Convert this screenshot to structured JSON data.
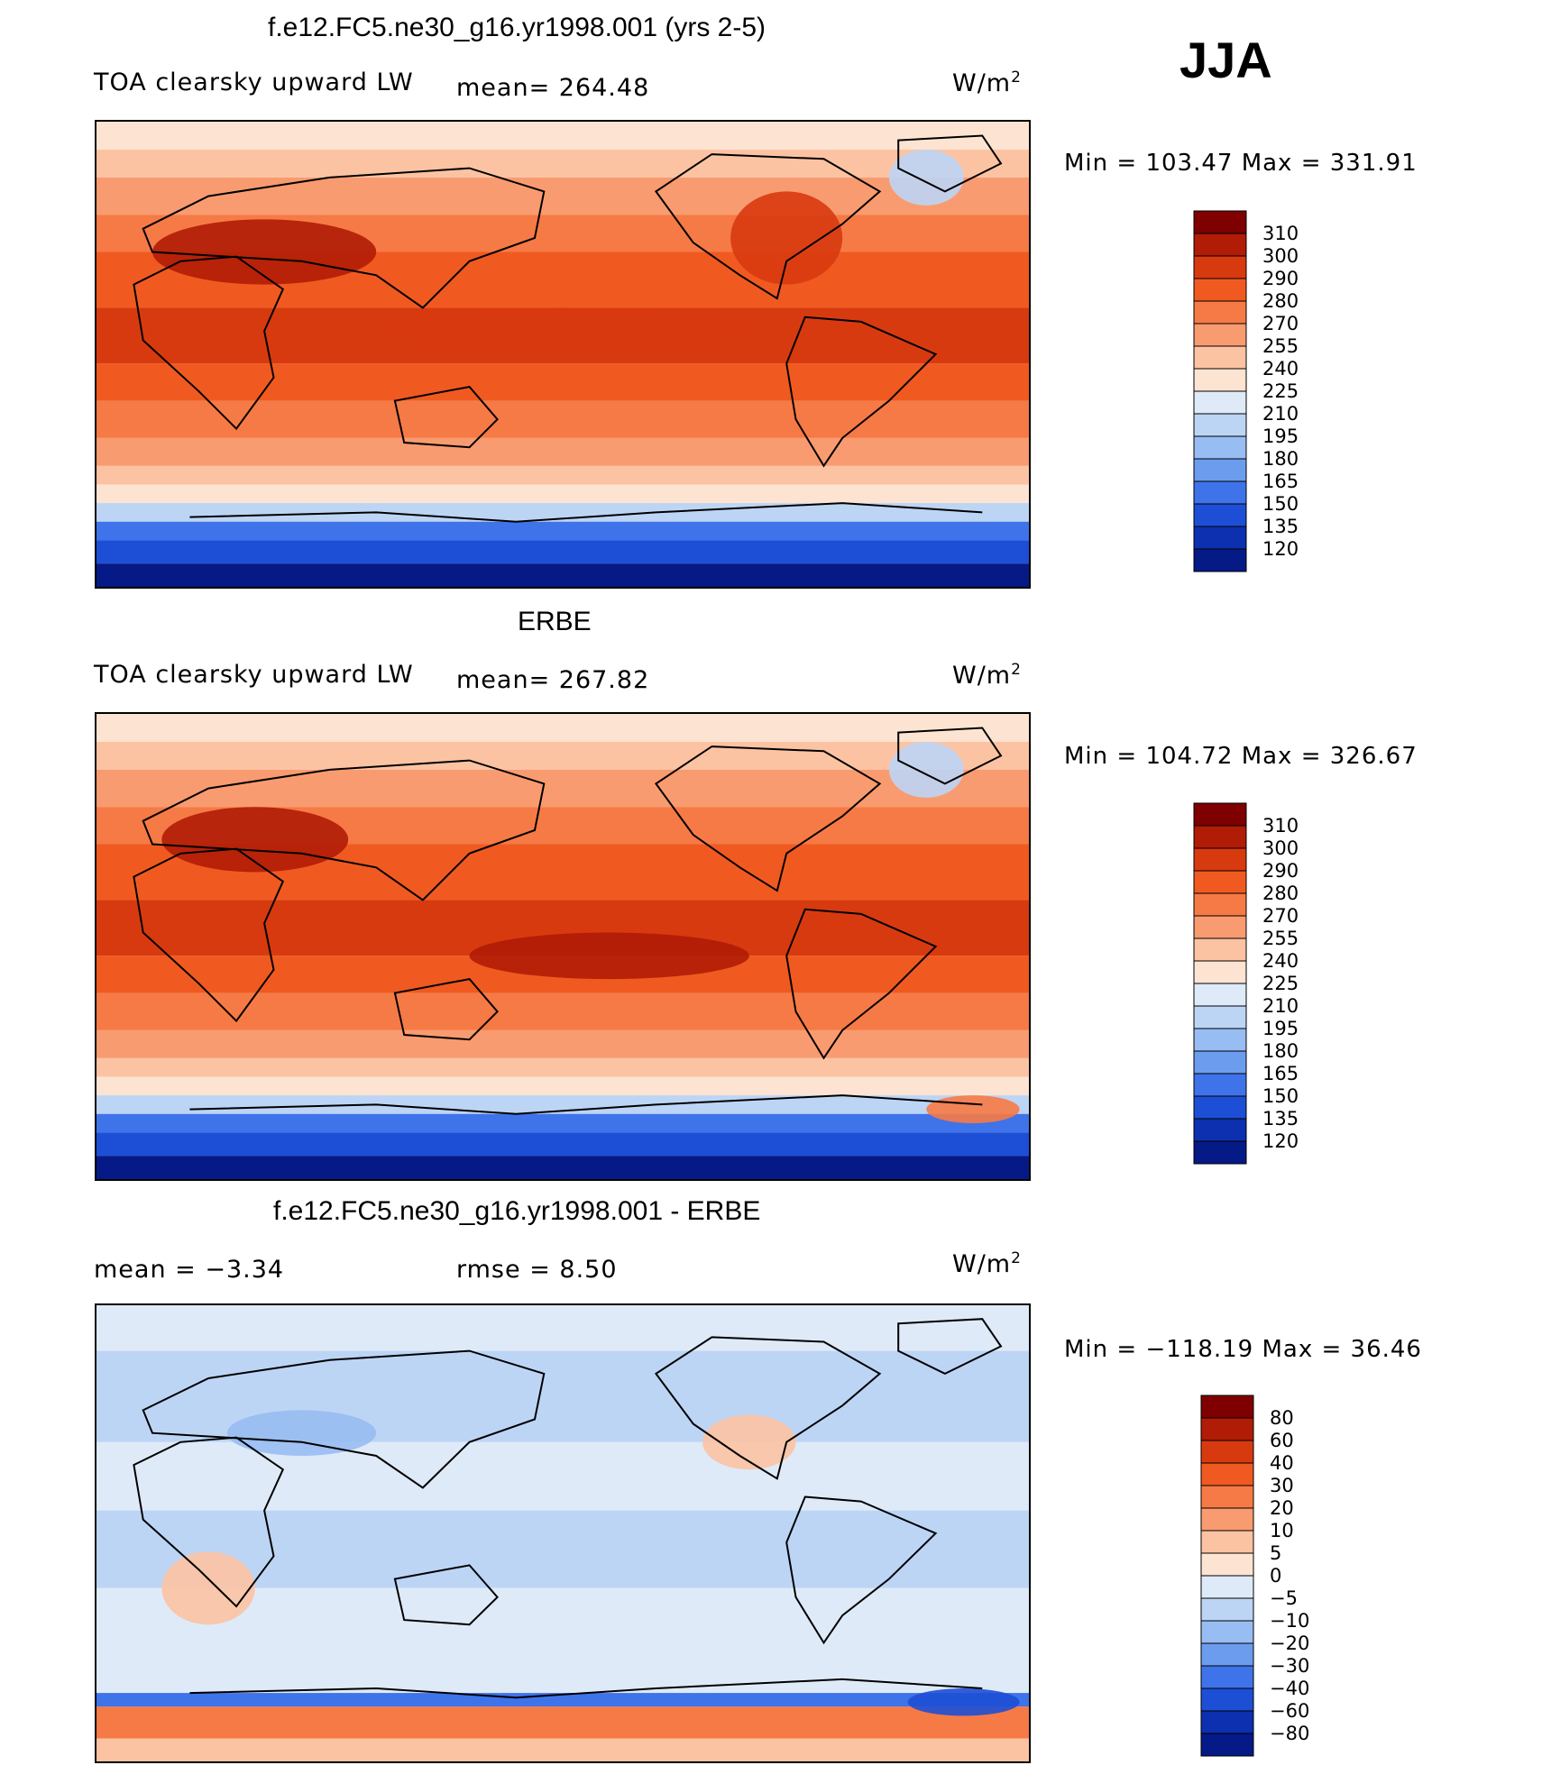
{
  "season": "JJA",
  "panels": [
    {
      "title": "f.e12.FC5.ne30_g16.yr1998.001 (yrs 2-5)",
      "left_label": "TOA clearsky upward LW",
      "stat1": "mean= 264.48",
      "stat2": "",
      "units": "W/m",
      "units_sup": "2",
      "minmax": "Min = 103.47 Max = 331.91"
    },
    {
      "title": "ERBE",
      "left_label": "TOA clearsky upward LW",
      "stat1": "mean= 267.82",
      "stat2": "",
      "units": "W/m",
      "units_sup": "2",
      "minmax": "Min = 104.72 Max = 326.67"
    },
    {
      "title": "f.e12.FC5.ne30_g16.yr1998.001 - ERBE",
      "left_label": "mean =   −3.34",
      "stat1": "rmse =    8.50",
      "stat2": "",
      "units": "W/m",
      "units_sup": "2",
      "minmax": "Min = −118.19 Max =  36.46"
    }
  ],
  "chart_data": [
    {
      "type": "heatmap",
      "title": "f.e12.FC5.ne30_g16.yr1998.001 (yrs 2-5)",
      "field": "TOA clearsky upward LW",
      "units": "W/m2",
      "mean": 264.48,
      "min": 103.47,
      "max": 331.91,
      "colorbar_levels": [
        310,
        300,
        290,
        280,
        270,
        255,
        240,
        225,
        210,
        195,
        180,
        165,
        150,
        135,
        120
      ],
      "colorbar_colors": [
        "#7f0000",
        "#b01c05",
        "#d83a10",
        "#f05a20",
        "#f67a45",
        "#f99b70",
        "#fcc3a3",
        "#fde4d2",
        "#dfeaf8",
        "#bdd5f5",
        "#98bdf2",
        "#6c9cee",
        "#3f73ea",
        "#1d4fd6",
        "#0d30b0",
        "#051a86"
      ]
    },
    {
      "type": "heatmap",
      "title": "ERBE",
      "field": "TOA clearsky upward LW",
      "units": "W/m2",
      "mean": 267.82,
      "min": 104.72,
      "max": 326.67,
      "colorbar_levels": [
        310,
        300,
        290,
        280,
        270,
        255,
        240,
        225,
        210,
        195,
        180,
        165,
        150,
        135,
        120
      ],
      "colorbar_colors": [
        "#7f0000",
        "#b01c05",
        "#d83a10",
        "#f05a20",
        "#f67a45",
        "#f99b70",
        "#fcc3a3",
        "#fde4d2",
        "#dfeaf8",
        "#bdd5f5",
        "#98bdf2",
        "#6c9cee",
        "#3f73ea",
        "#1d4fd6",
        "#0d30b0",
        "#051a86"
      ]
    },
    {
      "type": "heatmap",
      "title": "f.e12.FC5.ne30_g16.yr1998.001 - ERBE",
      "units": "W/m2",
      "mean": -3.34,
      "rmse": 8.5,
      "min": -118.19,
      "max": 36.46,
      "colorbar_levels": [
        "80",
        "60",
        "40",
        "30",
        "20",
        "10",
        "5",
        "0",
        "−5",
        "−10",
        "−20",
        "−30",
        "−40",
        "−60",
        "−80"
      ],
      "colorbar_colors": [
        "#7f0000",
        "#b01c05",
        "#d83a10",
        "#f05a20",
        "#f67a45",
        "#f99b70",
        "#fcc3a3",
        "#fde4d2",
        "#dfeaf8",
        "#bdd5f5",
        "#98bdf2",
        "#6c9cee",
        "#3f73ea",
        "#1d4fd6",
        "#0d30b0",
        "#051a86"
      ]
    }
  ]
}
